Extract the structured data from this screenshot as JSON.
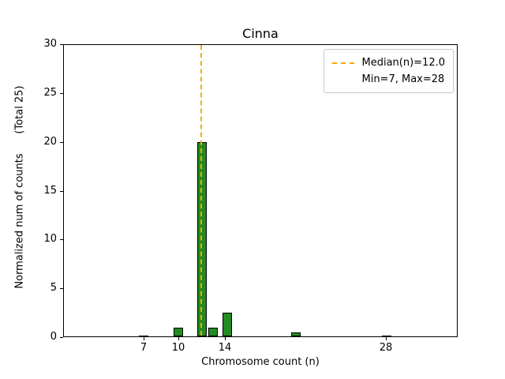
{
  "chart_data": {
    "type": "bar",
    "title": "Cinna",
    "xlabel": "Chromosome count (n)",
    "ylabel": "Normalized num of counts      (Total 25)",
    "xlim": [
      0,
      34.2
    ],
    "ylim": [
      0,
      30
    ],
    "xticks": [
      7,
      10,
      14,
      28
    ],
    "yticks": [
      0,
      5,
      10,
      15,
      20,
      25,
      30
    ],
    "bar_width": 0.8,
    "bar_color": "#228B22",
    "bar_edge_color": "#000000",
    "bars": [
      {
        "x": 7,
        "height": 0.1
      },
      {
        "x": 10,
        "height": 1.0
      },
      {
        "x": 12,
        "height": 20.0
      },
      {
        "x": 13,
        "height": 1.0
      },
      {
        "x": 14.2,
        "height": 2.5
      },
      {
        "x": 20.2,
        "height": 0.5
      },
      {
        "x": 28,
        "height": 0.1
      }
    ],
    "median_line": {
      "x": 12,
      "color": "#FFA500",
      "style": "dashed"
    },
    "legend": [
      "Median(n)=12.0",
      "Min=7, Max=28"
    ],
    "legend_position": "upper right",
    "grid": false,
    "stats": {
      "median": 12.0,
      "min": 7,
      "max": 28,
      "total": 25
    }
  }
}
